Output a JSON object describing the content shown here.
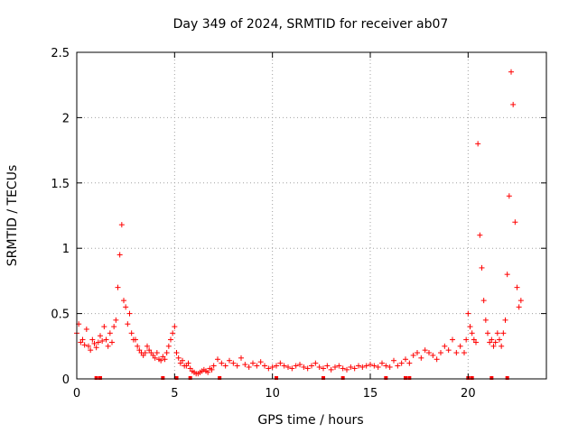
{
  "chart_data": {
    "type": "scatter",
    "title": "Day 349 of 2024, SRMTID for receiver ab07",
    "xlabel": "GPS time / hours",
    "ylabel": "SRMTID / TECUs",
    "xlim": [
      0,
      24
    ],
    "ylim": [
      0,
      2.5
    ],
    "xticks": [
      0,
      5,
      10,
      15,
      20
    ],
    "yticks": [
      0,
      0.5,
      1,
      1.5,
      2,
      2.5
    ],
    "xtick_labels": [
      "0",
      "5",
      "10",
      "15",
      "20"
    ],
    "ytick_labels": [
      "0",
      "0.5",
      "1",
      "1.5",
      "2",
      "2.5"
    ],
    "grid": true,
    "marker": "+",
    "color": "#ff0000",
    "series": [
      {
        "name": "SRMTID",
        "x": [
          0.0,
          0.1,
          0.2,
          0.3,
          0.4,
          0.5,
          0.6,
          0.7,
          0.8,
          0.9,
          1.0,
          1.1,
          1.2,
          1.3,
          1.4,
          1.5,
          1.6,
          1.7,
          1.8,
          1.9,
          2.0,
          2.1,
          2.2,
          2.3,
          2.4,
          2.5,
          2.6,
          2.7,
          2.8,
          2.9,
          3.0,
          3.1,
          3.2,
          3.3,
          3.4,
          3.5,
          3.6,
          3.7,
          3.8,
          3.9,
          4.0,
          4.1,
          4.2,
          4.3,
          4.4,
          4.5,
          4.6,
          4.7,
          4.8,
          4.9,
          5.0,
          5.1,
          5.2,
          5.3,
          5.4,
          5.5,
          5.6,
          5.7,
          5.8,
          5.9,
          6.0,
          6.1,
          6.2,
          6.3,
          6.4,
          6.5,
          6.6,
          6.7,
          6.8,
          6.9,
          7.0,
          7.2,
          7.4,
          7.6,
          7.8,
          8.0,
          8.2,
          8.4,
          8.6,
          8.8,
          9.0,
          9.2,
          9.4,
          9.6,
          9.8,
          10.0,
          10.2,
          10.4,
          10.6,
          10.8,
          11.0,
          11.2,
          11.4,
          11.6,
          11.8,
          12.0,
          12.2,
          12.4,
          12.6,
          12.8,
          13.0,
          13.2,
          13.4,
          13.6,
          13.8,
          14.0,
          14.2,
          14.4,
          14.6,
          14.8,
          15.0,
          15.2,
          15.4,
          15.6,
          15.8,
          16.0,
          16.2,
          16.4,
          16.6,
          16.8,
          17.0,
          17.2,
          17.4,
          17.6,
          17.8,
          18.0,
          18.2,
          18.4,
          18.6,
          18.8,
          19.0,
          19.2,
          19.4,
          19.6,
          19.8,
          19.9,
          20.0,
          20.1,
          20.2,
          20.3,
          20.4,
          20.5,
          20.6,
          20.7,
          20.8,
          20.9,
          21.0,
          21.1,
          21.2,
          21.3,
          21.4,
          21.5,
          21.6,
          21.7,
          21.8,
          21.9,
          22.0,
          22.1,
          22.2,
          22.3,
          22.4,
          22.5,
          22.6,
          22.7
        ],
        "y": [
          0.35,
          0.42,
          0.28,
          0.3,
          0.26,
          0.38,
          0.25,
          0.22,
          0.3,
          0.27,
          0.24,
          0.28,
          0.33,
          0.29,
          0.4,
          0.3,
          0.25,
          0.35,
          0.28,
          0.4,
          0.45,
          0.7,
          0.95,
          1.18,
          0.6,
          0.55,
          0.42,
          0.5,
          0.35,
          0.3,
          0.3,
          0.25,
          0.22,
          0.2,
          0.18,
          0.2,
          0.25,
          0.22,
          0.2,
          0.18,
          0.16,
          0.2,
          0.15,
          0.14,
          0.17,
          0.15,
          0.2,
          0.25,
          0.3,
          0.35,
          0.4,
          0.2,
          0.16,
          0.12,
          0.14,
          0.1,
          0.1,
          0.12,
          0.08,
          0.06,
          0.05,
          0.04,
          0.04,
          0.05,
          0.06,
          0.07,
          0.06,
          0.05,
          0.08,
          0.07,
          0.1,
          0.15,
          0.12,
          0.1,
          0.14,
          0.12,
          0.1,
          0.16,
          0.11,
          0.09,
          0.12,
          0.1,
          0.13,
          0.1,
          0.08,
          0.09,
          0.1,
          0.12,
          0.1,
          0.09,
          0.08,
          0.1,
          0.11,
          0.09,
          0.08,
          0.1,
          0.12,
          0.09,
          0.08,
          0.1,
          0.07,
          0.09,
          0.1,
          0.08,
          0.07,
          0.09,
          0.08,
          0.1,
          0.09,
          0.1,
          0.11,
          0.1,
          0.09,
          0.12,
          0.1,
          0.09,
          0.14,
          0.1,
          0.12,
          0.15,
          0.12,
          0.18,
          0.2,
          0.16,
          0.22,
          0.2,
          0.18,
          0.15,
          0.2,
          0.25,
          0.22,
          0.3,
          0.2,
          0.25,
          0.2,
          0.3,
          0.5,
          0.4,
          0.35,
          0.3,
          0.28,
          1.8,
          1.1,
          0.85,
          0.6,
          0.45,
          0.35,
          0.28,
          0.3,
          0.25,
          0.28,
          0.35,
          0.3,
          0.25,
          0.35,
          0.45,
          0.8,
          1.4,
          2.35,
          2.1,
          1.2,
          0.7,
          0.55,
          0.6
        ]
      }
    ],
    "baseline_markers_x": [
      1.0,
      1.2,
      4.4,
      5.1,
      5.8,
      7.3,
      10.2,
      12.6,
      13.6,
      15.8,
      16.8,
      17.0,
      20.0,
      20.2,
      21.2,
      22.0
    ]
  }
}
